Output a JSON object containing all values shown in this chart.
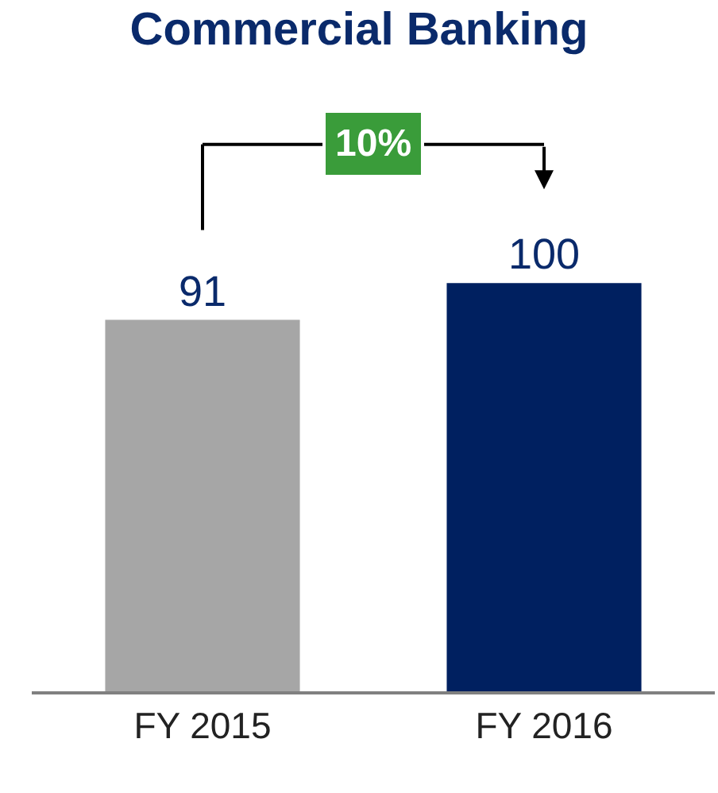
{
  "chart_data": {
    "type": "bar",
    "title": "Commercial Banking",
    "categories": [
      "FY 2015",
      "FY 2016"
    ],
    "values": [
      91,
      100
    ],
    "colors": [
      "#a6a6a6",
      "#002060"
    ],
    "data_labels": true,
    "annotations": [
      "10%"
    ]
  }
}
